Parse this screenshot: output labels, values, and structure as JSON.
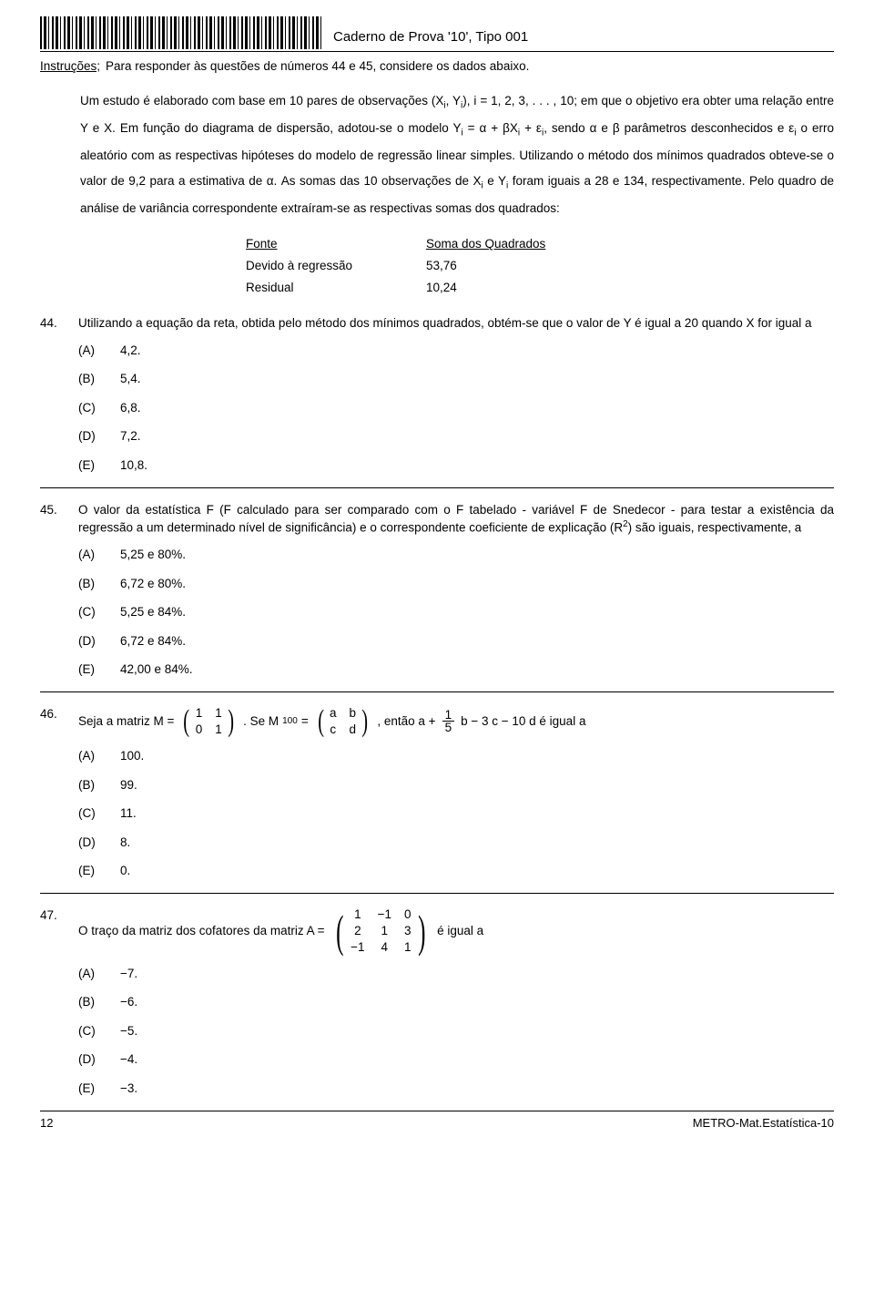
{
  "header": {
    "title": "Caderno de Prova '10', Tipo 001"
  },
  "instrucoes": {
    "label": "Instruções;",
    "text": "Para responder às questões de números 44 e 45, considere os dados abaixo."
  },
  "intro": {
    "p1a": "Um estudo é elaborado com base em 10 pares de observações (X",
    "p1b": ", Y",
    "p1c": "), i = 1, 2, 3, . . . , 10; em que o objetivo era obter uma relação entre Y e X. Em função do diagrama de dispersão, adotou-se o modelo Y",
    "p1d": " = α + βX",
    "p1e": " + ε",
    "p1f": ", sendo α e β parâmetros desconhecidos e ε",
    "p1g": " o erro aleatório com as respectivas hipóteses do modelo de regressão linear simples. Utilizando o método dos mínimos quadrados obteve-se o valor de 9,2 para a estimativa de α. As somas das 10 observações de X",
    "p1h": " e Y",
    "p1i": " foram iguais a 28 e 134, respectivamente. Pelo quadro de análise de variância correspondente extraíram-se as respectivas somas dos quadrados:",
    "sub_i": "i"
  },
  "table44": {
    "h1": "Fonte",
    "h2": "Soma dos Quadrados",
    "r1c1": "Devido à regressão",
    "r1c2": "53,76",
    "r2c1": "Residual",
    "r2c2": "10,24"
  },
  "q44": {
    "num": "44.",
    "text": "Utilizando a equação da reta, obtida pelo método dos mínimos quadrados, obtém-se que o valor de Y é igual a 20 quando X for igual a",
    "opts": {
      "A": "4,2.",
      "B": "5,4.",
      "C": "6,8.",
      "D": "7,2.",
      "E": "10,8."
    }
  },
  "q45": {
    "num": "45.",
    "text_a": "O valor da estatística F (F calculado para ser comparado com o F tabelado - variável F de Snedecor - para testar a existência da regressão a um determinado nível de significância) e o correspondente coeficiente de explicação (R",
    "sup2": "2",
    "text_b": ") são iguais, respectivamente, a",
    "opts": {
      "A": "5,25  e  80%.",
      "B": "6,72  e  80%.",
      "C": "5,25  e  84%.",
      "D": "6,72  e  84%.",
      "E": "42,00  e  84%."
    }
  },
  "q46": {
    "num": "46.",
    "lead": "Seja a matriz M =",
    "se": ". Se M",
    "exp": "100",
    "eq": " = ",
    "then": ", então a +",
    "tail": "b − 3 c − 10 d  é igual a",
    "m1": {
      "a": "1",
      "b": "1",
      "c": "0",
      "d": "1"
    },
    "m2": {
      "a": "a",
      "b": "b",
      "c": "c",
      "d": "d"
    },
    "frac": {
      "num": "1",
      "den": "5"
    },
    "opts": {
      "A": "100.",
      "B": "99.",
      "C": "11.",
      "D": "8.",
      "E": "0."
    }
  },
  "q47": {
    "num": "47.",
    "lead": "O traço da matriz dos cofatores da matriz A =",
    "tail": " é igual a",
    "m": {
      "r1c1": "1",
      "r1c2": "−1",
      "r1c3": "0",
      "r2c1": "2",
      "r2c2": "1",
      "r2c3": "3",
      "r3c1": "−1",
      "r3c2": "4",
      "r3c3": "1"
    },
    "opts": {
      "A": "−7.",
      "B": "−6.",
      "C": "−5.",
      "D": "−4.",
      "E": "−3."
    }
  },
  "optlabels": {
    "A": "(A)",
    "B": "(B)",
    "C": "(C)",
    "D": "(D)",
    "E": "(E)"
  },
  "footer": {
    "page": "12",
    "code": "METRO-Mat.Estatística-10"
  }
}
